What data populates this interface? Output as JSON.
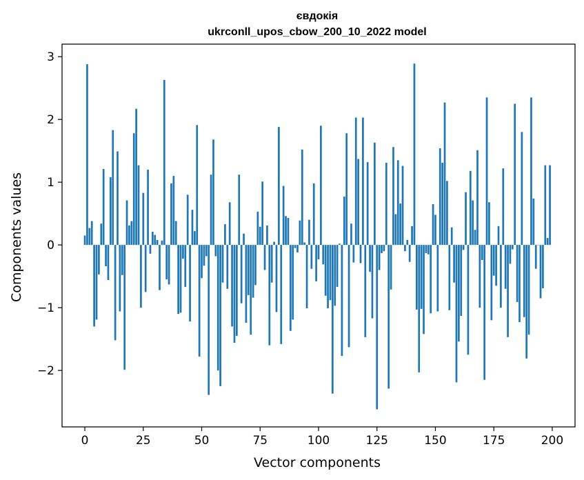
{
  "chart_data": {
    "type": "bar",
    "title": "євдокія",
    "subtitle": "ukrconll_upos_cbow_200_10_2022 model",
    "xlabel": "Vector components",
    "ylabel": "Components values",
    "xlim": [
      -9.75,
      209.75
    ],
    "ylim": [
      -2.9,
      3.2
    ],
    "xticks": [
      0,
      25,
      50,
      75,
      100,
      125,
      150,
      175,
      200
    ],
    "yticks": [
      -2,
      -1,
      0,
      1,
      2,
      3
    ],
    "ytick_labels": [
      "−2",
      "−1",
      "0",
      "1",
      "2",
      "3"
    ],
    "grid": false,
    "bar_color": "#1f77b4",
    "x": [
      0,
      1,
      2,
      3,
      4,
      5,
      6,
      7,
      8,
      9,
      10,
      11,
      12,
      13,
      14,
      15,
      16,
      17,
      18,
      19,
      20,
      21,
      22,
      23,
      24,
      25,
      26,
      27,
      28,
      29,
      30,
      31,
      32,
      33,
      34,
      35,
      36,
      37,
      38,
      39,
      40,
      41,
      42,
      43,
      44,
      45,
      46,
      47,
      48,
      49,
      50,
      51,
      52,
      53,
      54,
      55,
      56,
      57,
      58,
      59,
      60,
      61,
      62,
      63,
      64,
      65,
      66,
      67,
      68,
      69,
      70,
      71,
      72,
      73,
      74,
      75,
      76,
      77,
      78,
      79,
      80,
      81,
      82,
      83,
      84,
      85,
      86,
      87,
      88,
      89,
      90,
      91,
      92,
      93,
      94,
      95,
      96,
      97,
      98,
      99,
      100,
      101,
      102,
      103,
      104,
      105,
      106,
      107,
      108,
      109,
      110,
      111,
      112,
      113,
      114,
      115,
      116,
      117,
      118,
      119,
      120,
      121,
      122,
      123,
      124,
      125,
      126,
      127,
      128,
      129,
      130,
      131,
      132,
      133,
      134,
      135,
      136,
      137,
      138,
      139,
      140,
      141,
      142,
      143,
      144,
      145,
      146,
      147,
      148,
      149,
      150,
      151,
      152,
      153,
      154,
      155,
      156,
      157,
      158,
      159,
      160,
      161,
      162,
      163,
      164,
      165,
      166,
      167,
      168,
      169,
      170,
      171,
      172,
      173,
      174,
      175,
      176,
      177,
      178,
      179,
      180,
      181,
      182,
      183,
      184,
      185,
      186,
      187,
      188,
      189,
      190,
      191,
      192,
      193,
      194,
      195,
      196,
      197,
      198,
      199
    ],
    "values": [
      0.15,
      2.88,
      0.27,
      0.38,
      -1.3,
      -1.19,
      -0.47,
      0.34,
      1.21,
      -0.34,
      -0.56,
      1.08,
      1.83,
      -1.52,
      1.49,
      -1.06,
      -0.48,
      -1.99,
      0.71,
      0.31,
      0.38,
      1.78,
      2.17,
      1.27,
      -1.0,
      0.83,
      -0.75,
      1.2,
      -0.14,
      0.21,
      0.16,
      0.08,
      -0.72,
      0.07,
      2.63,
      -0.55,
      -0.63,
      0.98,
      1.1,
      0.38,
      -1.1,
      -1.08,
      -0.22,
      -0.67,
      0.8,
      -1.22,
      0.56,
      0.22,
      1.91,
      -1.78,
      -0.53,
      -0.33,
      -0.18,
      -2.39,
      1.12,
      1.68,
      -0.18,
      -2.0,
      -2.25,
      -0.6,
      0.33,
      -0.7,
      0.68,
      -1.3,
      -1.56,
      -1.45,
      1.12,
      -0.93,
      0.18,
      -1.24,
      -0.8,
      -1.43,
      -0.84,
      -0.64,
      0.53,
      0.29,
      1.01,
      -0.4,
      0.31,
      -1.6,
      -0.6,
      0.05,
      -1.07,
      1.88,
      -1.58,
      0.94,
      0.46,
      0.43,
      -1.37,
      -1.19,
      -0.05,
      -0.12,
      0.39,
      1.52,
      0.04,
      -1.01,
      0.4,
      -0.38,
      0.98,
      -0.58,
      -0.23,
      1.9,
      -0.31,
      -0.81,
      -1.01,
      -0.88,
      -2.37,
      -0.97,
      -0.67,
      0.02,
      -1.77,
      0.77,
      1.78,
      -1.63,
      0.34,
      -0.28,
      2.03,
      1.37,
      -0.29,
      2.03,
      -1.47,
      1.32,
      -0.43,
      -1.17,
      1.63,
      -2.62,
      -0.4,
      -0.13,
      -0.1,
      1.31,
      -2.29,
      -0.71,
      1.56,
      0.49,
      1.35,
      0.66,
      1.26,
      -0.1,
      0.08,
      -0.27,
      0.3,
      2.89,
      -1.03,
      -2.03,
      -1.02,
      -1.42,
      -0.13,
      -0.15,
      -1.09,
      0.65,
      0.48,
      -1.06,
      1.54,
      1.31,
      2.27,
      1.02,
      -1.04,
      0.28,
      -0.6,
      -2.19,
      -1.54,
      -1.13,
      -0.08,
      0.84,
      -1.75,
      1.18,
      0.71,
      0.24,
      1.51,
      -1.0,
      -0.24,
      -2.15,
      2.35,
      0.68,
      -1.2,
      -0.49,
      -0.65,
      0.3,
      -1.0,
      1.22,
      -0.7,
      -1.47,
      -0.3,
      -0.07,
      2.25,
      -0.91,
      -1.23,
      1.8,
      -1.15,
      -1.81,
      -1.43,
      2.35,
      0.74,
      -0.38,
      0.0,
      -0.85,
      -0.69,
      1.27,
      0.11,
      1.27
    ]
  }
}
